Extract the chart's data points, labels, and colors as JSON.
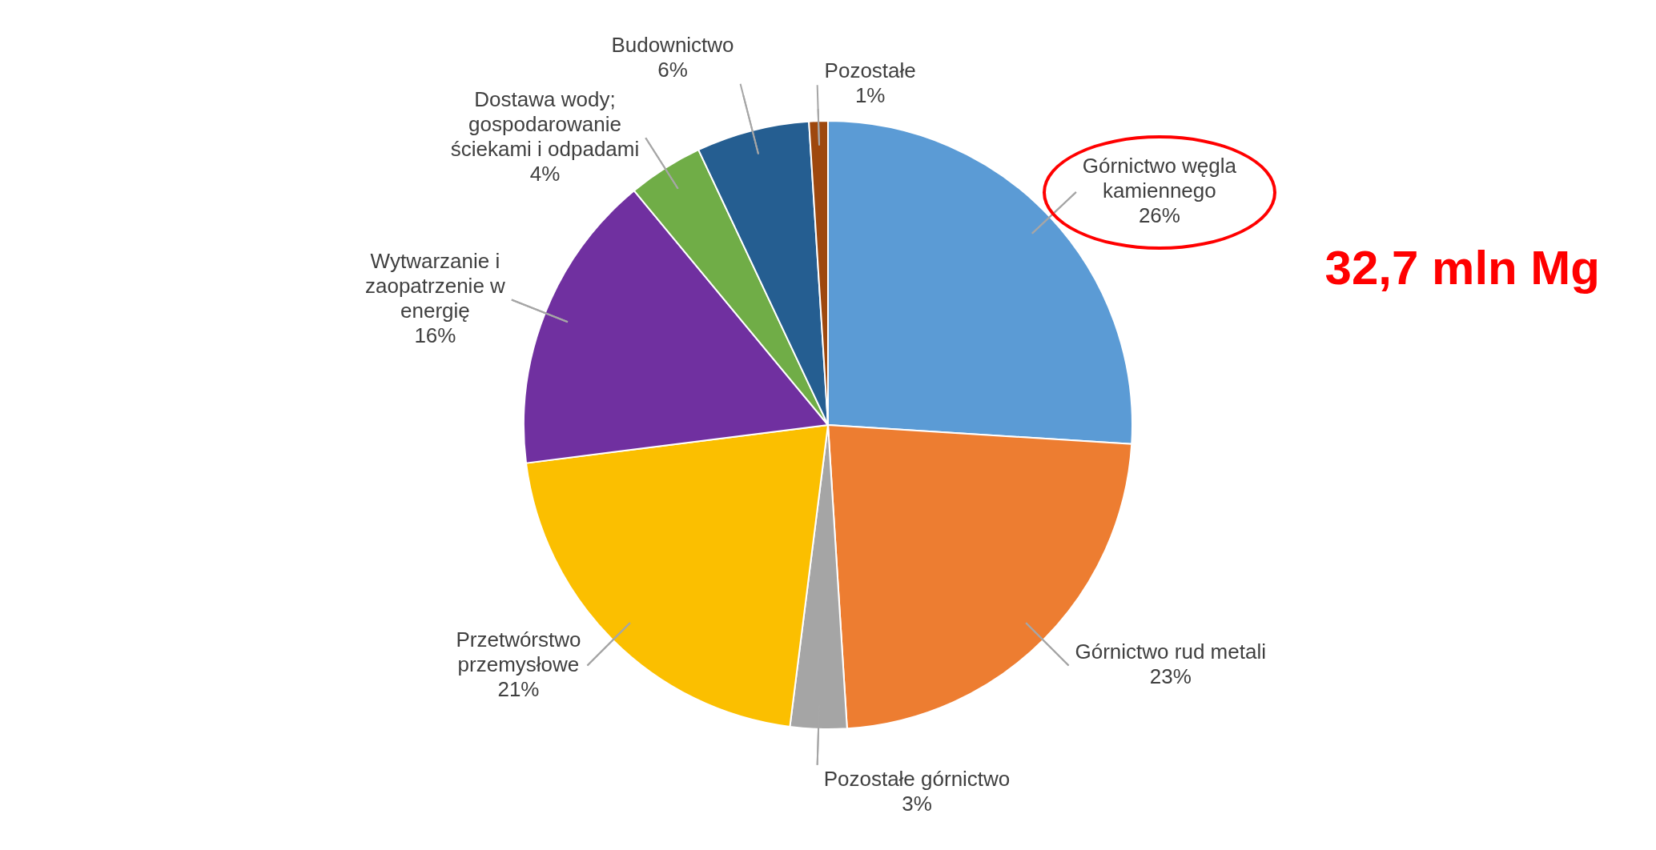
{
  "chart_data": {
    "type": "pie",
    "categories": [
      "Górnictwo węgla kamiennego",
      "Górnictwo rud metali",
      "Pozostałe górnictwo",
      "Przetwórstwo przemysłowe",
      "Wytwarzanie i zaopatrzenie w energię",
      "Dostawa wody; gospodarowanie ściekami i odpadami",
      "Budownictwo",
      "Pozostałe"
    ],
    "values": [
      26,
      23,
      3,
      21,
      16,
      4,
      6,
      1
    ],
    "value_labels": [
      "26%",
      "23%",
      "3%",
      "21%",
      "16%",
      "4%",
      "6%",
      "1%"
    ],
    "colors": [
      "#5b9bd5",
      "#ed7d31",
      "#a5a5a5",
      "#fbbf00",
      "#7030a0",
      "#70ad47",
      "#255e91",
      "#9e480e"
    ],
    "annotations": [
      "32,7 mln Mg"
    ],
    "legend": false
  }
}
